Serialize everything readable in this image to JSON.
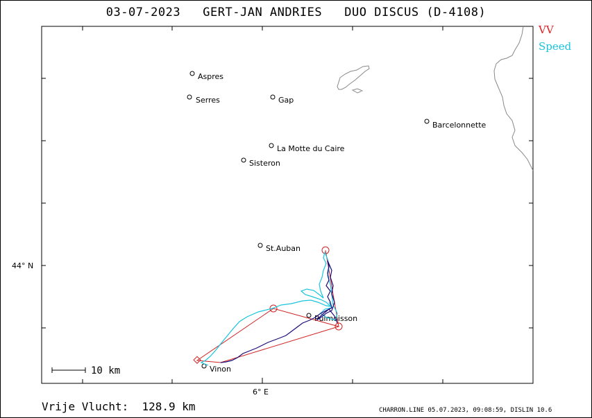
{
  "header": {
    "title": "03-07-2023   GERT-JAN ANDRIES   DUO DISCUS (D-4108)"
  },
  "legend": {
    "vv_label": "VV",
    "speed_label": "Speed",
    "vv_color": "#d22222",
    "speed_color": "#19c4de",
    "track_color": "#1a0a7a"
  },
  "axes": {
    "lat_label": "44° N",
    "lon_label": "6° E"
  },
  "scale_bar": {
    "label": "10  km"
  },
  "towns": [
    {
      "name": "Aspres"
    },
    {
      "name": "Serres"
    },
    {
      "name": "Gap"
    },
    {
      "name": "Barcelonnette"
    },
    {
      "name": "La Motte du Caire"
    },
    {
      "name": "Sisteron"
    },
    {
      "name": "St.Auban"
    },
    {
      "name": "Puimoisson"
    },
    {
      "name": "Vinon"
    }
  ],
  "footer": {
    "distance": "Vrije Vlucht:  128.9 km",
    "credit": "CHARRON.LINE 05.07.2023, 09:08:59, DISLIN 10.6"
  }
}
